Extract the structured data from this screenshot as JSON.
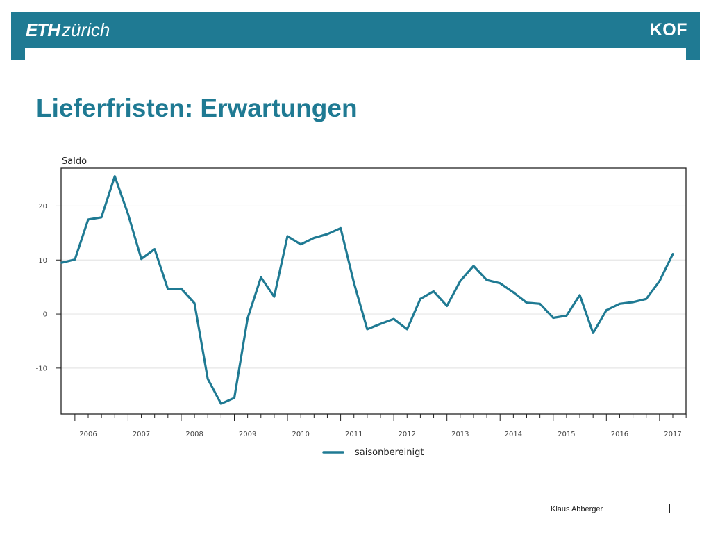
{
  "header": {
    "logo_left_bold": "ETH",
    "logo_left_rest": "zürich",
    "logo_right": "KOF",
    "bar_color": "#1f7a93"
  },
  "page_title": "Lieferfristen: Erwartungen",
  "footer": {
    "author": "Klaus Abberger"
  },
  "chart_data": {
    "type": "line",
    "title": "",
    "ylabel": "Saldo",
    "xlabel": "",
    "ylim": [
      -18.5,
      27
    ],
    "yticks": [
      -10,
      0,
      10,
      20
    ],
    "x_start_year": 2006,
    "x_end_year": 2017,
    "x_tick_labels": [
      "2006",
      "2007",
      "2008",
      "2009",
      "2010",
      "2011",
      "2012",
      "2013",
      "2014",
      "2015",
      "2016",
      "2017"
    ],
    "grid": true,
    "legend": "bottom-center",
    "series": [
      {
        "name": "saisonbereinigt",
        "color": "#1f7a93",
        "points": [
          [
            "2005-Q4",
            9.5
          ],
          [
            "2006-Q1",
            10.1
          ],
          [
            "2006-Q2",
            17.5
          ],
          [
            "2006-Q3",
            17.9
          ],
          [
            "2006-Q4",
            25.5
          ],
          [
            "2007-Q1",
            18.5
          ],
          [
            "2007-Q2",
            10.2
          ],
          [
            "2007-Q3",
            12.0
          ],
          [
            "2007-Q4",
            4.6
          ],
          [
            "2008-Q1",
            4.7
          ],
          [
            "2008-Q2",
            2.0
          ],
          [
            "2008-Q3",
            -12.0
          ],
          [
            "2008-Q4",
            -16.6
          ],
          [
            "2009-Q1",
            -15.5
          ],
          [
            "2009-Q2",
            -0.8
          ],
          [
            "2009-Q3",
            6.8
          ],
          [
            "2009-Q4",
            3.2
          ],
          [
            "2010-Q1",
            14.4
          ],
          [
            "2010-Q2",
            12.9
          ],
          [
            "2010-Q3",
            14.1
          ],
          [
            "2010-Q4",
            14.8
          ],
          [
            "2011-Q1",
            15.9
          ],
          [
            "2011-Q2",
            5.8
          ],
          [
            "2011-Q3",
            -2.8
          ],
          [
            "2011-Q4",
            -1.8
          ],
          [
            "2012-Q1",
            -0.9
          ],
          [
            "2012-Q2",
            -2.8
          ],
          [
            "2012-Q3",
            2.8
          ],
          [
            "2012-Q4",
            4.2
          ],
          [
            "2013-Q1",
            1.5
          ],
          [
            "2013-Q2",
            6.1
          ],
          [
            "2013-Q3",
            8.9
          ],
          [
            "2013-Q4",
            6.3
          ],
          [
            "2014-Q1",
            5.7
          ],
          [
            "2014-Q2",
            4.0
          ],
          [
            "2014-Q3",
            2.1
          ],
          [
            "2014-Q4",
            1.9
          ],
          [
            "2015-Q1",
            -0.7
          ],
          [
            "2015-Q2",
            -0.3
          ],
          [
            "2015-Q3",
            3.5
          ],
          [
            "2015-Q4",
            -3.5
          ],
          [
            "2016-Q1",
            0.7
          ],
          [
            "2016-Q2",
            1.9
          ],
          [
            "2016-Q3",
            2.2
          ],
          [
            "2016-Q4",
            2.8
          ],
          [
            "2017-Q1",
            6.1
          ],
          [
            "2017-Q2",
            11.1
          ]
        ]
      }
    ]
  }
}
